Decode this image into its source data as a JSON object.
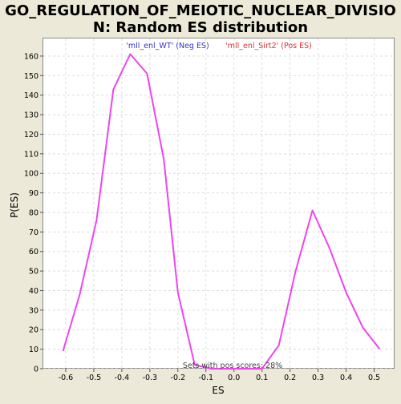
{
  "chart_data": {
    "type": "line",
    "title_lines": [
      "GO_REGULATION_OF_MEIOTIC_NUCLEAR_DIVISIO",
      "N: Random ES distribution"
    ],
    "xlabel": "ES",
    "ylabel": "P(ES)",
    "xlim": [
      -0.68,
      0.57
    ],
    "ylim": [
      0,
      169
    ],
    "xticks": [
      -0.6,
      -0.5,
      -0.4,
      -0.3,
      -0.2,
      -0.1,
      0.0,
      0.1,
      0.2,
      0.3,
      0.4,
      0.5
    ],
    "xtick_labels": [
      "-0.6",
      "-0.5",
      "-0.4",
      "-0.3",
      "-0.2",
      "-0.1",
      "0.0",
      "0.1",
      "0.2",
      "0.3",
      "0.4",
      "0.5"
    ],
    "yticks": [
      0,
      10,
      20,
      30,
      40,
      50,
      60,
      70,
      80,
      90,
      100,
      110,
      120,
      130,
      140,
      150,
      160
    ],
    "grid": true,
    "legend": [
      {
        "label": "'mll_enl_WT' (Neg ES)",
        "color": "#3333CC"
      },
      {
        "label": "'mll_enl_Sirt2' (Pos ES)",
        "color": "#E03030"
      }
    ],
    "annotation": "Sets with pos scores: 28%",
    "series": [
      {
        "color": "#EE44EE",
        "x": [
          -0.61,
          -0.55,
          -0.49,
          -0.43,
          -0.37,
          -0.31,
          -0.25,
          -0.2,
          -0.14,
          -0.08,
          -0.02,
          0.04,
          0.1,
          0.16,
          0.22,
          0.28,
          0.34,
          0.4,
          0.46,
          0.52
        ],
        "y": [
          9,
          38,
          76,
          143,
          161,
          151,
          107,
          39,
          2,
          0,
          0,
          0,
          0,
          12,
          50,
          81,
          62,
          39,
          21,
          10
        ]
      }
    ]
  }
}
